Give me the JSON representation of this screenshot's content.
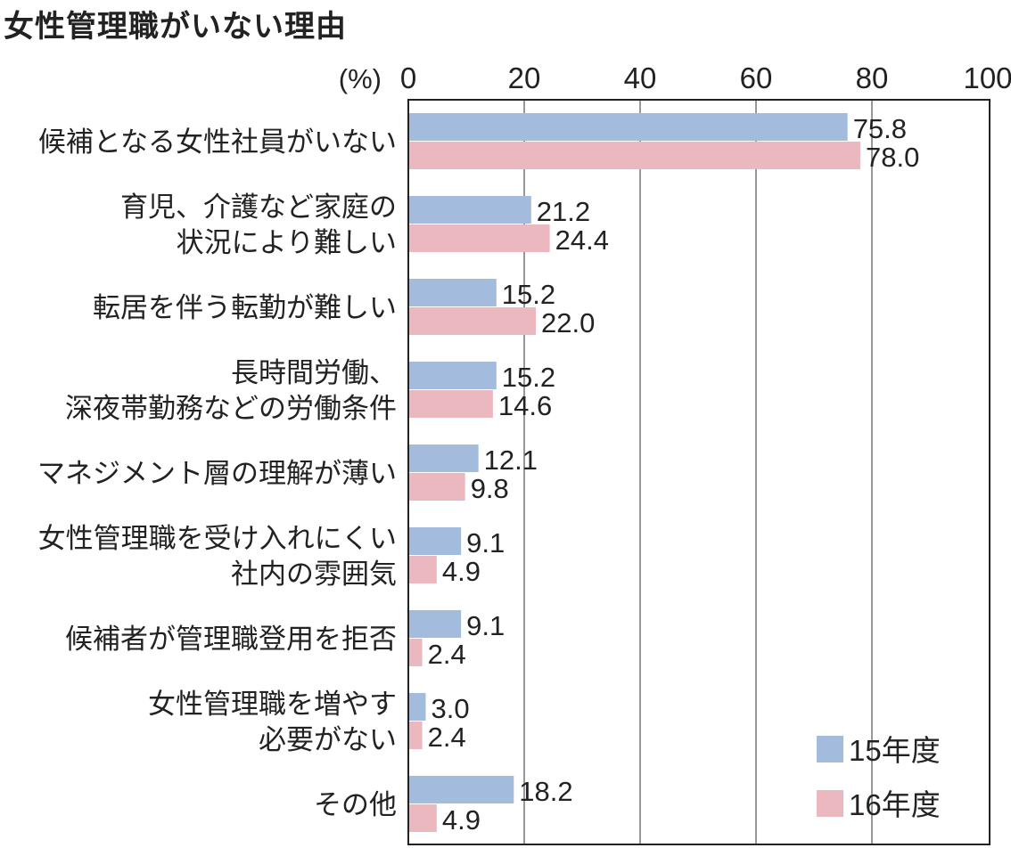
{
  "chart_data": {
    "type": "bar",
    "orientation": "horizontal",
    "title": "女性管理職がいない理由",
    "xlabel": "(%)",
    "xlim": [
      0,
      100
    ],
    "xticks": [
      0,
      20,
      40,
      60,
      80,
      100
    ],
    "grid": true,
    "legend_position": "bottom-right",
    "categories": [
      [
        "候補となる女性社員がいない"
      ],
      [
        "育児、介護など家庭の",
        "状況により難しい"
      ],
      [
        "転居を伴う転勤が難しい"
      ],
      [
        "長時間労働、",
        "深夜帯勤務などの労働条件"
      ],
      [
        "マネジメント層の理解が薄い"
      ],
      [
        "女性管理職を受け入れにくい",
        "社内の雰囲気"
      ],
      [
        "候補者が管理職登用を拒否"
      ],
      [
        "女性管理職を増やす",
        "必要がない"
      ],
      [
        "その他"
      ]
    ],
    "series": [
      {
        "name": "15年度",
        "color": "#a3bbdc",
        "values": [
          75.8,
          21.2,
          15.2,
          15.2,
          12.1,
          9.1,
          9.1,
          3.0,
          18.2
        ]
      },
      {
        "name": "16年度",
        "color": "#ecb8c0",
        "values": [
          78.0,
          24.4,
          22.0,
          14.6,
          9.8,
          4.9,
          2.4,
          2.4,
          4.9
        ]
      }
    ]
  }
}
